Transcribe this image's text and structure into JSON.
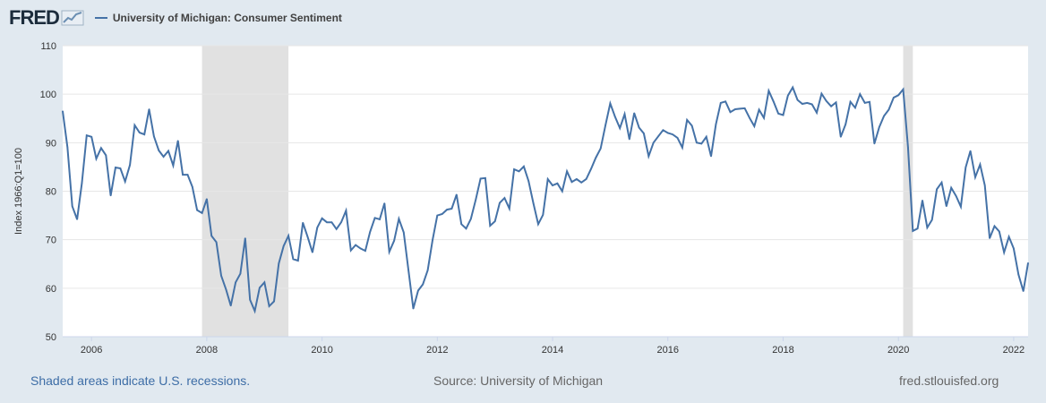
{
  "header": {
    "logo_text": "FRED",
    "logo_icon": "chart-line-icon",
    "legend_label": "University of Michigan: Consumer Sentiment"
  },
  "footer": {
    "recessions_note": "Shaded areas indicate U.S. recessions.",
    "source": "Source: University of Michigan",
    "site": "fred.stlouisfed.org"
  },
  "colors": {
    "background": "#e1e9f0",
    "plot_background": "#ffffff",
    "series_line": "#4572a7",
    "recession_shade": "#e1e1e1",
    "grid": "#e6e6e6"
  },
  "chart_data": {
    "type": "line",
    "ylabel": "Index 1966:Q1=100",
    "xlabel": "",
    "title": "",
    "ylim": [
      50,
      110
    ],
    "yticks": [
      50,
      60,
      70,
      80,
      90,
      100,
      110
    ],
    "xlim": [
      2005.5,
      2022.25
    ],
    "xticks": [
      2006,
      2008,
      2010,
      2012,
      2014,
      2016,
      2018,
      2020,
      2022
    ],
    "grid": "horizontal",
    "legend": "top-left",
    "recessions": [
      [
        2007.917,
        2009.417
      ],
      [
        2020.083,
        2020.25
      ]
    ],
    "series": [
      {
        "name": "University of Michigan: Consumer Sentiment",
        "x": [
          2005.5,
          2005.583,
          2005.667,
          2005.75,
          2005.833,
          2005.917,
          2006.0,
          2006.083,
          2006.167,
          2006.25,
          2006.333,
          2006.417,
          2006.5,
          2006.583,
          2006.667,
          2006.75,
          2006.833,
          2006.917,
          2007.0,
          2007.083,
          2007.167,
          2007.25,
          2007.333,
          2007.417,
          2007.5,
          2007.583,
          2007.667,
          2007.75,
          2007.833,
          2007.917,
          2008.0,
          2008.083,
          2008.167,
          2008.25,
          2008.333,
          2008.417,
          2008.5,
          2008.583,
          2008.667,
          2008.75,
          2008.833,
          2008.917,
          2009.0,
          2009.083,
          2009.167,
          2009.25,
          2009.333,
          2009.417,
          2009.5,
          2009.583,
          2009.667,
          2009.75,
          2009.833,
          2009.917,
          2010.0,
          2010.083,
          2010.167,
          2010.25,
          2010.333,
          2010.417,
          2010.5,
          2010.583,
          2010.667,
          2010.75,
          2010.833,
          2010.917,
          2011.0,
          2011.083,
          2011.167,
          2011.25,
          2011.333,
          2011.417,
          2011.5,
          2011.583,
          2011.667,
          2011.75,
          2011.833,
          2011.917,
          2012.0,
          2012.083,
          2012.167,
          2012.25,
          2012.333,
          2012.417,
          2012.5,
          2012.583,
          2012.667,
          2012.75,
          2012.833,
          2012.917,
          2013.0,
          2013.083,
          2013.167,
          2013.25,
          2013.333,
          2013.417,
          2013.5,
          2013.583,
          2013.667,
          2013.75,
          2013.833,
          2013.917,
          2014.0,
          2014.083,
          2014.167,
          2014.25,
          2014.333,
          2014.417,
          2014.5,
          2014.583,
          2014.667,
          2014.75,
          2014.833,
          2014.917,
          2015.0,
          2015.083,
          2015.167,
          2015.25,
          2015.333,
          2015.417,
          2015.5,
          2015.583,
          2015.667,
          2015.75,
          2015.833,
          2015.917,
          2016.0,
          2016.083,
          2016.167,
          2016.25,
          2016.333,
          2016.417,
          2016.5,
          2016.583,
          2016.667,
          2016.75,
          2016.833,
          2016.917,
          2017.0,
          2017.083,
          2017.167,
          2017.25,
          2017.333,
          2017.417,
          2017.5,
          2017.583,
          2017.667,
          2017.75,
          2017.833,
          2017.917,
          2018.0,
          2018.083,
          2018.167,
          2018.25,
          2018.333,
          2018.417,
          2018.5,
          2018.583,
          2018.667,
          2018.75,
          2018.833,
          2018.917,
          2019.0,
          2019.083,
          2019.167,
          2019.25,
          2019.333,
          2019.417,
          2019.5,
          2019.583,
          2019.667,
          2019.75,
          2019.833,
          2019.917,
          2020.0,
          2020.083,
          2020.167,
          2020.25,
          2020.333,
          2020.417,
          2020.5,
          2020.583,
          2020.667,
          2020.75,
          2020.833,
          2020.917,
          2021.0,
          2021.083,
          2021.167,
          2021.25,
          2021.333,
          2021.417,
          2021.5,
          2021.583,
          2021.667,
          2021.75,
          2021.833,
          2021.917,
          2022.0,
          2022.083,
          2022.167,
          2022.25
        ],
        "y": [
          96.5,
          89.1,
          76.9,
          74.2,
          81.6,
          91.5,
          91.2,
          86.7,
          88.9,
          87.4,
          79.1,
          84.9,
          84.7,
          82.0,
          85.4,
          93.6,
          92.1,
          91.7,
          96.9,
          91.3,
          88.4,
          87.1,
          88.3,
          85.3,
          90.4,
          83.4,
          83.4,
          80.9,
          76.1,
          75.5,
          78.4,
          70.8,
          69.5,
          62.6,
          59.8,
          56.4,
          61.2,
          63.0,
          70.3,
          57.6,
          55.3,
          60.1,
          61.2,
          56.3,
          57.3,
          65.1,
          68.7,
          70.8,
          66.0,
          65.7,
          73.5,
          70.6,
          67.4,
          72.5,
          74.4,
          73.6,
          73.6,
          72.2,
          73.6,
          76.0,
          67.8,
          68.9,
          68.2,
          67.7,
          71.6,
          74.5,
          74.2,
          77.5,
          67.5,
          69.8,
          74.3,
          71.5,
          63.7,
          55.8,
          59.5,
          60.8,
          63.7,
          69.9,
          75.0,
          75.3,
          76.2,
          76.4,
          79.3,
          73.2,
          72.3,
          74.3,
          78.3,
          82.6,
          82.7,
          72.9,
          73.8,
          77.6,
          78.6,
          76.4,
          84.5,
          84.1,
          85.1,
          82.1,
          77.5,
          73.2,
          75.1,
          82.5,
          81.2,
          81.6,
          80.0,
          84.1,
          81.9,
          82.5,
          81.8,
          82.5,
          84.6,
          86.9,
          88.8,
          93.6,
          98.1,
          95.4,
          93.0,
          95.9,
          90.7,
          96.1,
          93.1,
          91.9,
          87.2,
          90.0,
          91.3,
          92.6,
          92.0,
          91.7,
          91.0,
          89.0,
          94.7,
          93.5,
          90.0,
          89.8,
          91.2,
          87.2,
          93.8,
          98.2,
          98.5,
          96.3,
          96.9,
          97.0,
          97.1,
          95.1,
          93.4,
          96.8,
          95.1,
          100.7,
          98.5,
          96.0,
          95.7,
          99.7,
          101.4,
          98.8,
          98.0,
          98.2,
          97.9,
          96.2,
          100.1,
          98.6,
          97.5,
          98.3,
          91.2,
          93.8,
          98.4,
          97.2,
          100.0,
          98.2,
          98.4,
          89.8,
          93.2,
          95.5,
          96.8,
          99.3,
          99.8,
          101.0,
          89.1,
          71.8,
          72.3,
          78.1,
          72.5,
          74.1,
          80.4,
          81.8,
          76.9,
          80.7,
          79.0,
          76.8,
          84.9,
          88.3,
          82.9,
          85.5,
          81.2,
          70.3,
          72.8,
          71.7,
          67.4,
          70.6,
          68.2,
          62.8,
          59.4,
          65.2
        ]
      }
    ]
  }
}
